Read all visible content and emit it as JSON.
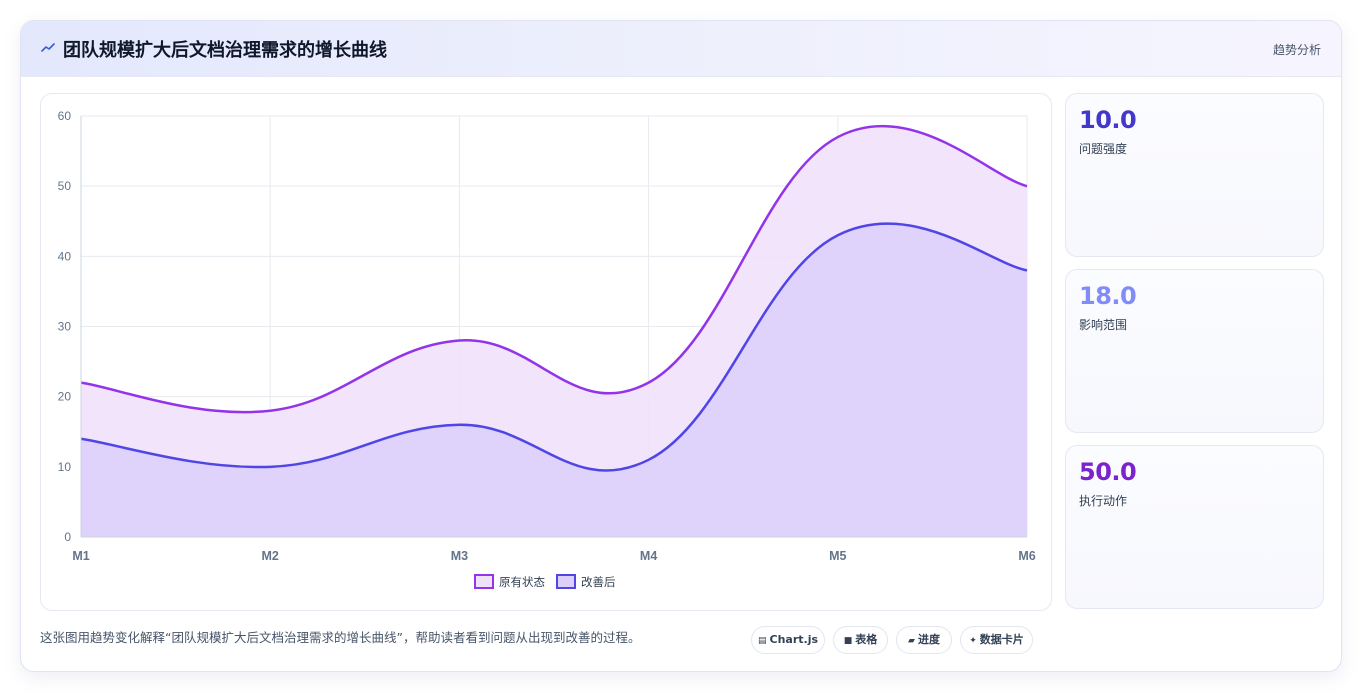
{
  "header": {
    "icon": "trend-line-icon",
    "title": "团队规模扩大后文档治理需求的增长曲线",
    "tag": "趋势分析"
  },
  "chart_data": {
    "type": "area",
    "x": [
      "M1",
      "M2",
      "M3",
      "M4",
      "M5",
      "M6"
    ],
    "ylim": [
      0,
      60
    ],
    "yticks": [
      0,
      10,
      20,
      30,
      40,
      50,
      60
    ],
    "grid": true,
    "legend_position": "bottom",
    "series": [
      {
        "name": "原有状态",
        "values": [
          22,
          18,
          28,
          22,
          57,
          50
        ],
        "color": "#9333ea",
        "fill": "#f0e1fa"
      },
      {
        "name": "改善后",
        "values": [
          14,
          10,
          16,
          11,
          43,
          38
        ],
        "color": "#4f46e5",
        "fill": "#dccffa"
      }
    ]
  },
  "kpis": [
    {
      "value": "10.0",
      "label": "问题强度",
      "color": "#4338ca"
    },
    {
      "value": "18.0",
      "label": "影响范围",
      "color": "#818cf8"
    },
    {
      "value": "50.0",
      "label": "执行动作",
      "color": "#7e22ce"
    }
  ],
  "footer": {
    "description": "这张图用趋势变化解释“团队规模扩大后文档治理需求的增长曲线”，帮助读者看到问题从出现到改善的过程。",
    "chips": [
      {
        "icon": "▤",
        "label": "Chart.js"
      },
      {
        "icon": "■",
        "label": "表格"
      },
      {
        "icon": "▰",
        "label": "进度"
      },
      {
        "icon": "✦",
        "label": "数据卡片"
      }
    ]
  }
}
